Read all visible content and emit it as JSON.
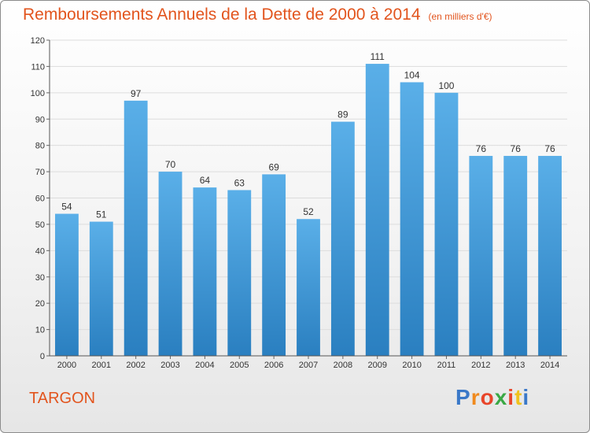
{
  "chart_data": {
    "type": "bar",
    "title": "Remboursements Annuels de la Dette de 2000 à 2014",
    "subtitle": "(en milliers d'€)",
    "categories": [
      "2000",
      "2001",
      "2002",
      "2003",
      "2004",
      "2005",
      "2006",
      "2007",
      "2008",
      "2009",
      "2010",
      "2011",
      "2012",
      "2013",
      "2014"
    ],
    "values": [
      54,
      51,
      97,
      70,
      64,
      63,
      69,
      52,
      89,
      111,
      104,
      100,
      76,
      76,
      76
    ],
    "ylim": [
      0,
      120
    ],
    "yticks": [
      0,
      10,
      20,
      30,
      40,
      50,
      60,
      70,
      80,
      90,
      100,
      110,
      120
    ],
    "xlabel": "",
    "ylabel": "",
    "grid": true,
    "bar_color_top": "#5aafe8",
    "bar_color_bottom": "#2a7fc0"
  },
  "footer": {
    "town": "TARGON"
  },
  "logo": {
    "letters": [
      "P",
      "r",
      "o",
      "x",
      "i",
      "t",
      "i"
    ],
    "colors": [
      "#3a78c8",
      "#f08a1e",
      "#e8452a",
      "#3aa845",
      "#e8452a",
      "#f0c21e",
      "#3a78c8"
    ]
  }
}
